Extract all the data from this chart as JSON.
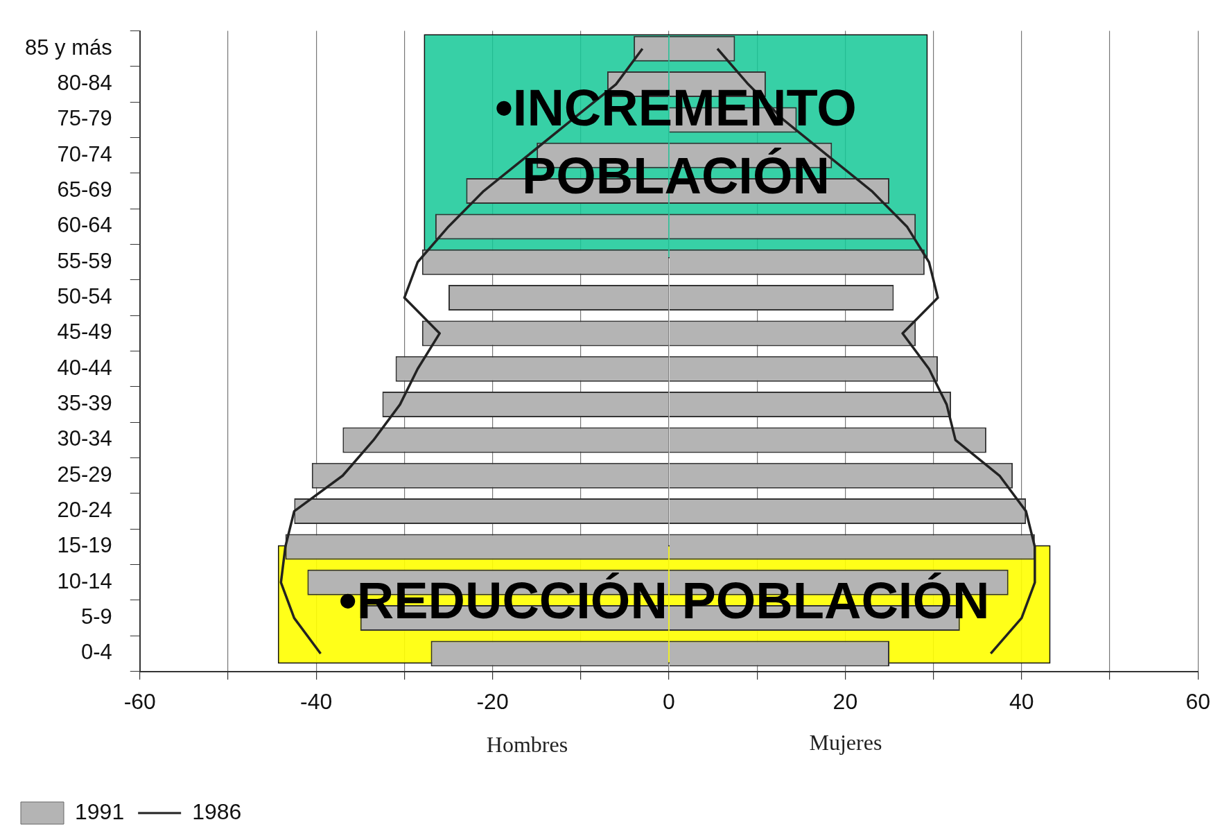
{
  "chart_data": {
    "type": "bar",
    "orientation": "horizontal",
    "stacked": true,
    "categories": [
      "85 y más",
      "80-84",
      "75-79",
      "70-74",
      "65-69",
      "60-64",
      "55-59",
      "50-54",
      "45-49",
      "40-44",
      "35-39",
      "30-34",
      "25-29",
      "20-24",
      "15-19",
      "10-14",
      "5-9",
      "0-4"
    ],
    "series": [
      {
        "name": "1991",
        "color": "#b4b4b4",
        "values": [
          -4,
          -7,
          null,
          -15,
          -23,
          -26.5,
          -28,
          -25,
          -28,
          -31,
          -32.5,
          -37,
          -40.5,
          -42.5,
          -43.5,
          -41,
          -35,
          -27
        ]
      },
      {
        "color": "#b4b4b4",
        "values": [
          7.5,
          11,
          14.5,
          18.5,
          25,
          28,
          29,
          25.5,
          28,
          30.5,
          32,
          36,
          39,
          40.5,
          41.5,
          38.5,
          33,
          25
        ]
      },
      {
        "name": "1986",
        "type": "line",
        "color": "#222222",
        "values": [
          -3,
          -6,
          -11,
          -16,
          -21,
          -25,
          -28.5,
          -30,
          -26,
          -28.5,
          -30.5,
          -33.5,
          -37,
          -42.5,
          -43.5,
          -44,
          -42.5,
          -39.5
        ]
      },
      {
        "type": "line",
        "color": "#222222",
        "values": [
          5.5,
          9,
          13,
          18,
          23,
          27,
          29.5,
          30.5,
          26.5,
          29.5,
          31.5,
          32.5,
          37.5,
          40.5,
          41.5,
          41.5,
          40,
          36.5
        ]
      }
    ],
    "xlim": [
      -60,
      60
    ],
    "xticks": [
      -60,
      {
        "value": -50,
        "label": null
      },
      -40,
      {
        "value": -30,
        "label": null
      },
      -20,
      {
        "value": -10,
        "label": null
      },
      0,
      {
        "value": 10,
        "label": null
      },
      20,
      {
        "value": 30,
        "label": null
      },
      40,
      {
        "value": 50,
        "label": null
      },
      60
    ],
    "xlabel": "Hombres",
    "annotations": [
      "•INCREMENTO POBLACIÓN",
      "•REDUCCIÓN POBLACIÓN",
      "Mujeres"
    ],
    "grid": "x",
    "legend": "bottom left",
    "line_style": "solid",
    "marker": "none"
  }
}
